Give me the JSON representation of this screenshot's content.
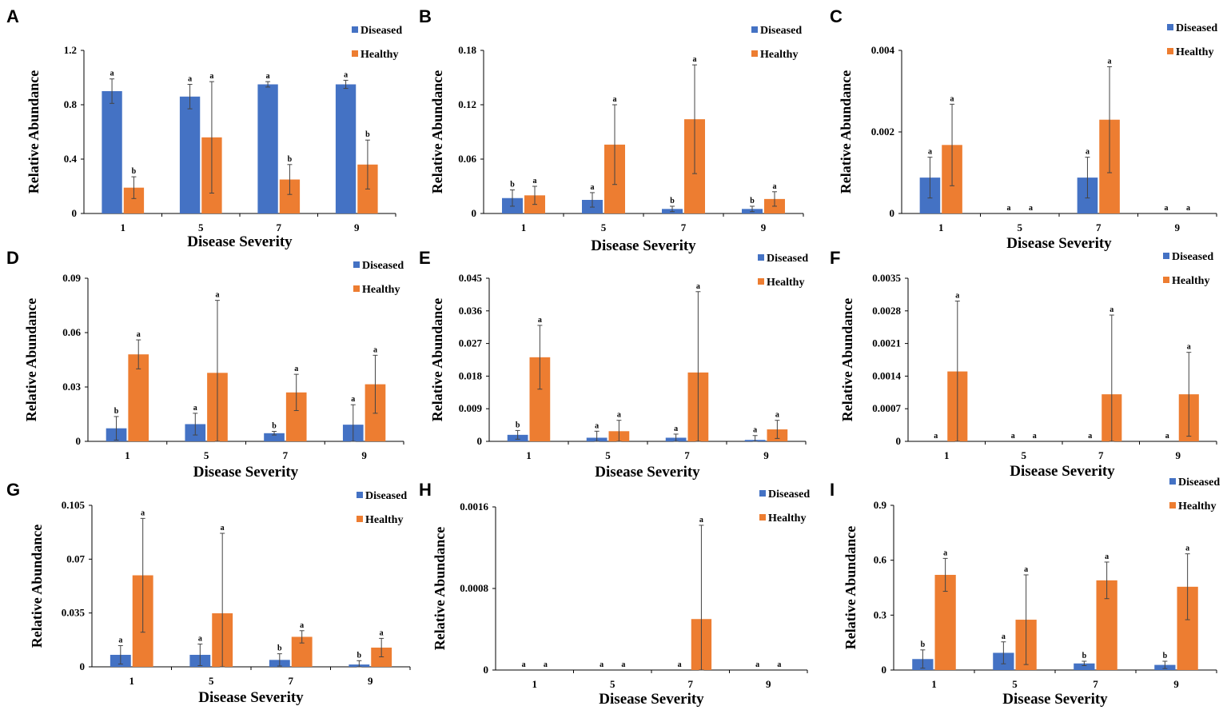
{
  "colors": {
    "diseased": "#4472C4",
    "healthy": "#ED7D31",
    "axis": "#000000",
    "errorbar": "#444444"
  },
  "legend": {
    "diseased": "Diseased",
    "healthy": "Healthy"
  },
  "chart_data": [
    {
      "type": "bar",
      "panel": "A",
      "xlabel": "Disease Severity",
      "ylabel": "Relative Abundance",
      "categories": [
        "1",
        "5",
        "7",
        "9"
      ],
      "ylim": [
        0,
        1.2
      ],
      "yticks": [
        "0",
        "0.4",
        "0.8",
        "1.2"
      ],
      "legend": "top-right",
      "series": [
        {
          "name": "Diseased",
          "values": [
            0.9,
            0.86,
            0.95,
            0.95
          ],
          "errors": [
            0.09,
            0.09,
            0.02,
            0.03
          ],
          "labels": [
            "a",
            "a",
            "a",
            "a"
          ]
        },
        {
          "name": "Healthy",
          "values": [
            0.19,
            0.56,
            0.25,
            0.36
          ],
          "errors": [
            0.08,
            0.41,
            0.11,
            0.18
          ],
          "labels": [
            "b",
            "a",
            "b",
            "b"
          ]
        }
      ]
    },
    {
      "type": "bar",
      "panel": "B",
      "xlabel": "Disease Severity",
      "ylabel": "Relative Abundance",
      "categories": [
        "1",
        "5",
        "7",
        "9"
      ],
      "ylim": [
        0,
        0.18
      ],
      "yticks": [
        "0",
        "0.06",
        "0.12",
        "0.18"
      ],
      "legend": "top-right",
      "series": [
        {
          "name": "Diseased",
          "values": [
            0.017,
            0.015,
            0.005,
            0.005
          ],
          "errors": [
            0.009,
            0.008,
            0.003,
            0.003
          ],
          "labels": [
            "b",
            "a",
            "b",
            "b"
          ]
        },
        {
          "name": "Healthy",
          "values": [
            0.02,
            0.076,
            0.104,
            0.016
          ],
          "errors": [
            0.01,
            0.044,
            0.06,
            0.008
          ],
          "labels": [
            "a",
            "a",
            "a",
            "a"
          ]
        }
      ]
    },
    {
      "type": "bar",
      "panel": "C",
      "xlabel": "Disease Severity",
      "ylabel": "Relative Abundance",
      "categories": [
        "1",
        "5",
        "7",
        "9"
      ],
      "ylim": [
        0,
        0.004
      ],
      "yticks": [
        "0",
        "0.002",
        "0.004"
      ],
      "legend": "top-right",
      "series": [
        {
          "name": "Diseased",
          "values": [
            0.00088,
            0,
            0.00088,
            0
          ],
          "errors": [
            0.0005,
            0,
            0.0005,
            0
          ],
          "labels": [
            "a",
            "a",
            "a",
            "a"
          ]
        },
        {
          "name": "Healthy",
          "values": [
            0.00168,
            0,
            0.0023,
            0
          ],
          "errors": [
            0.001,
            0,
            0.0013,
            0
          ],
          "labels": [
            "a",
            "a",
            "a",
            "a"
          ]
        }
      ]
    },
    {
      "type": "bar",
      "panel": "D",
      "xlabel": "Disease Severity",
      "ylabel": "Relative Abundance",
      "categories": [
        "1",
        "5",
        "7",
        "9"
      ],
      "ylim": [
        0,
        0.09
      ],
      "yticks": [
        "0",
        "0.03",
        "0.06",
        "0.09"
      ],
      "legend": "top-right",
      "series": [
        {
          "name": "Diseased",
          "values": [
            0.0072,
            0.0095,
            0.0045,
            0.0092
          ],
          "errors": [
            0.0065,
            0.006,
            0.001,
            0.011
          ],
          "labels": [
            "b",
            "a",
            "b",
            "a"
          ]
        },
        {
          "name": "Healthy",
          "values": [
            0.048,
            0.0378,
            0.027,
            0.0315
          ],
          "errors": [
            0.008,
            0.04,
            0.01,
            0.016
          ],
          "labels": [
            "a",
            "a",
            "a",
            "a"
          ]
        }
      ]
    },
    {
      "type": "bar",
      "panel": "E",
      "xlabel": "Disease Severity",
      "ylabel": "Relative Abundance",
      "categories": [
        "1",
        "5",
        "7",
        "9"
      ],
      "ylim": [
        0,
        0.045
      ],
      "yticks": [
        "0",
        "0.009",
        "0.018",
        "0.027",
        "0.036",
        "0.045"
      ],
      "legend": "top-right",
      "series": [
        {
          "name": "Diseased",
          "values": [
            0.0018,
            0.001,
            0.001,
            0.0004
          ],
          "errors": [
            0.0012,
            0.0018,
            0.001,
            0.0012
          ],
          "labels": [
            "b",
            "a",
            "a",
            "a"
          ]
        },
        {
          "name": "Healthy",
          "values": [
            0.0232,
            0.0028,
            0.019,
            0.0033
          ],
          "errors": [
            0.0088,
            0.003,
            0.0223,
            0.0025
          ],
          "labels": [
            "a",
            "a",
            "a",
            "a"
          ]
        }
      ]
    },
    {
      "type": "bar",
      "panel": "F",
      "xlabel": "Disease Severity",
      "ylabel": "Relative Abundance",
      "categories": [
        "1",
        "5",
        "7",
        "9"
      ],
      "ylim": [
        0,
        0.0035
      ],
      "yticks": [
        "0",
        "0.0007",
        "0.0014",
        "0.0021",
        "0.0028",
        "0.0035"
      ],
      "legend": "top-right",
      "series": [
        {
          "name": "Diseased",
          "values": [
            0,
            0,
            0,
            0
          ],
          "errors": [
            0,
            0,
            0,
            0
          ],
          "labels": [
            "a",
            "a",
            "a",
            "a"
          ]
        },
        {
          "name": "Healthy",
          "values": [
            0.0015,
            0,
            0.00101,
            0.00101
          ],
          "errors": [
            0.00151,
            0,
            0.0017,
            0.0009
          ],
          "labels": [
            "a",
            "a",
            "a",
            "a"
          ]
        }
      ]
    },
    {
      "type": "bar",
      "panel": "G",
      "xlabel": "Disease Severity",
      "ylabel": "Relative Abundance",
      "categories": [
        "1",
        "5",
        "7",
        "9"
      ],
      "ylim": [
        0,
        0.105
      ],
      "yticks": [
        "0",
        "0.035",
        "0.07",
        "0.105"
      ],
      "legend": "top-right",
      "series": [
        {
          "name": "Diseased",
          "values": [
            0.0078,
            0.0078,
            0.0045,
            0.0015
          ],
          "errors": [
            0.006,
            0.007,
            0.004,
            0.0025
          ],
          "labels": [
            "a",
            "a",
            "b",
            "b"
          ]
        },
        {
          "name": "Healthy",
          "values": [
            0.0595,
            0.0348,
            0.0195,
            0.0125
          ],
          "errors": [
            0.037,
            0.052,
            0.004,
            0.006
          ],
          "labels": [
            "a",
            "a",
            "a",
            "a"
          ]
        }
      ]
    },
    {
      "type": "bar",
      "panel": "H",
      "xlabel": "Disease Severity",
      "ylabel": "Relative Abundance",
      "categories": [
        "1",
        "5",
        "7",
        "9"
      ],
      "ylim": [
        0,
        0.0016
      ],
      "yticks": [
        "0",
        "0.0008",
        "0.0016"
      ],
      "legend": "top-right",
      "series": [
        {
          "name": "Diseased",
          "values": [
            0,
            0,
            0,
            0
          ],
          "errors": [
            0,
            0,
            0,
            0
          ],
          "labels": [
            "a",
            "a",
            "a",
            "a"
          ]
        },
        {
          "name": "Healthy",
          "values": [
            0,
            0,
            0.0005,
            0
          ],
          "errors": [
            0,
            0,
            0.00092,
            0
          ],
          "labels": [
            "a",
            "a",
            "a",
            "a"
          ]
        }
      ]
    },
    {
      "type": "bar",
      "panel": "I",
      "xlabel": "Disease Severity",
      "ylabel": "Relative Abundance",
      "categories": [
        "1",
        "5",
        "7",
        "9"
      ],
      "ylim": [
        0,
        0.9
      ],
      "yticks": [
        "0",
        "0.3",
        "0.6",
        "0.9"
      ],
      "legend": "top-right",
      "series": [
        {
          "name": "Diseased",
          "values": [
            0.06,
            0.094,
            0.036,
            0.028
          ],
          "errors": [
            0.05,
            0.06,
            0.012,
            0.02
          ],
          "labels": [
            "b",
            "a",
            "b",
            "b"
          ]
        },
        {
          "name": "Healthy",
          "values": [
            0.52,
            0.275,
            0.49,
            0.455
          ],
          "errors": [
            0.09,
            0.245,
            0.1,
            0.18
          ],
          "labels": [
            "a",
            "a",
            "a",
            "a"
          ]
        }
      ]
    }
  ]
}
